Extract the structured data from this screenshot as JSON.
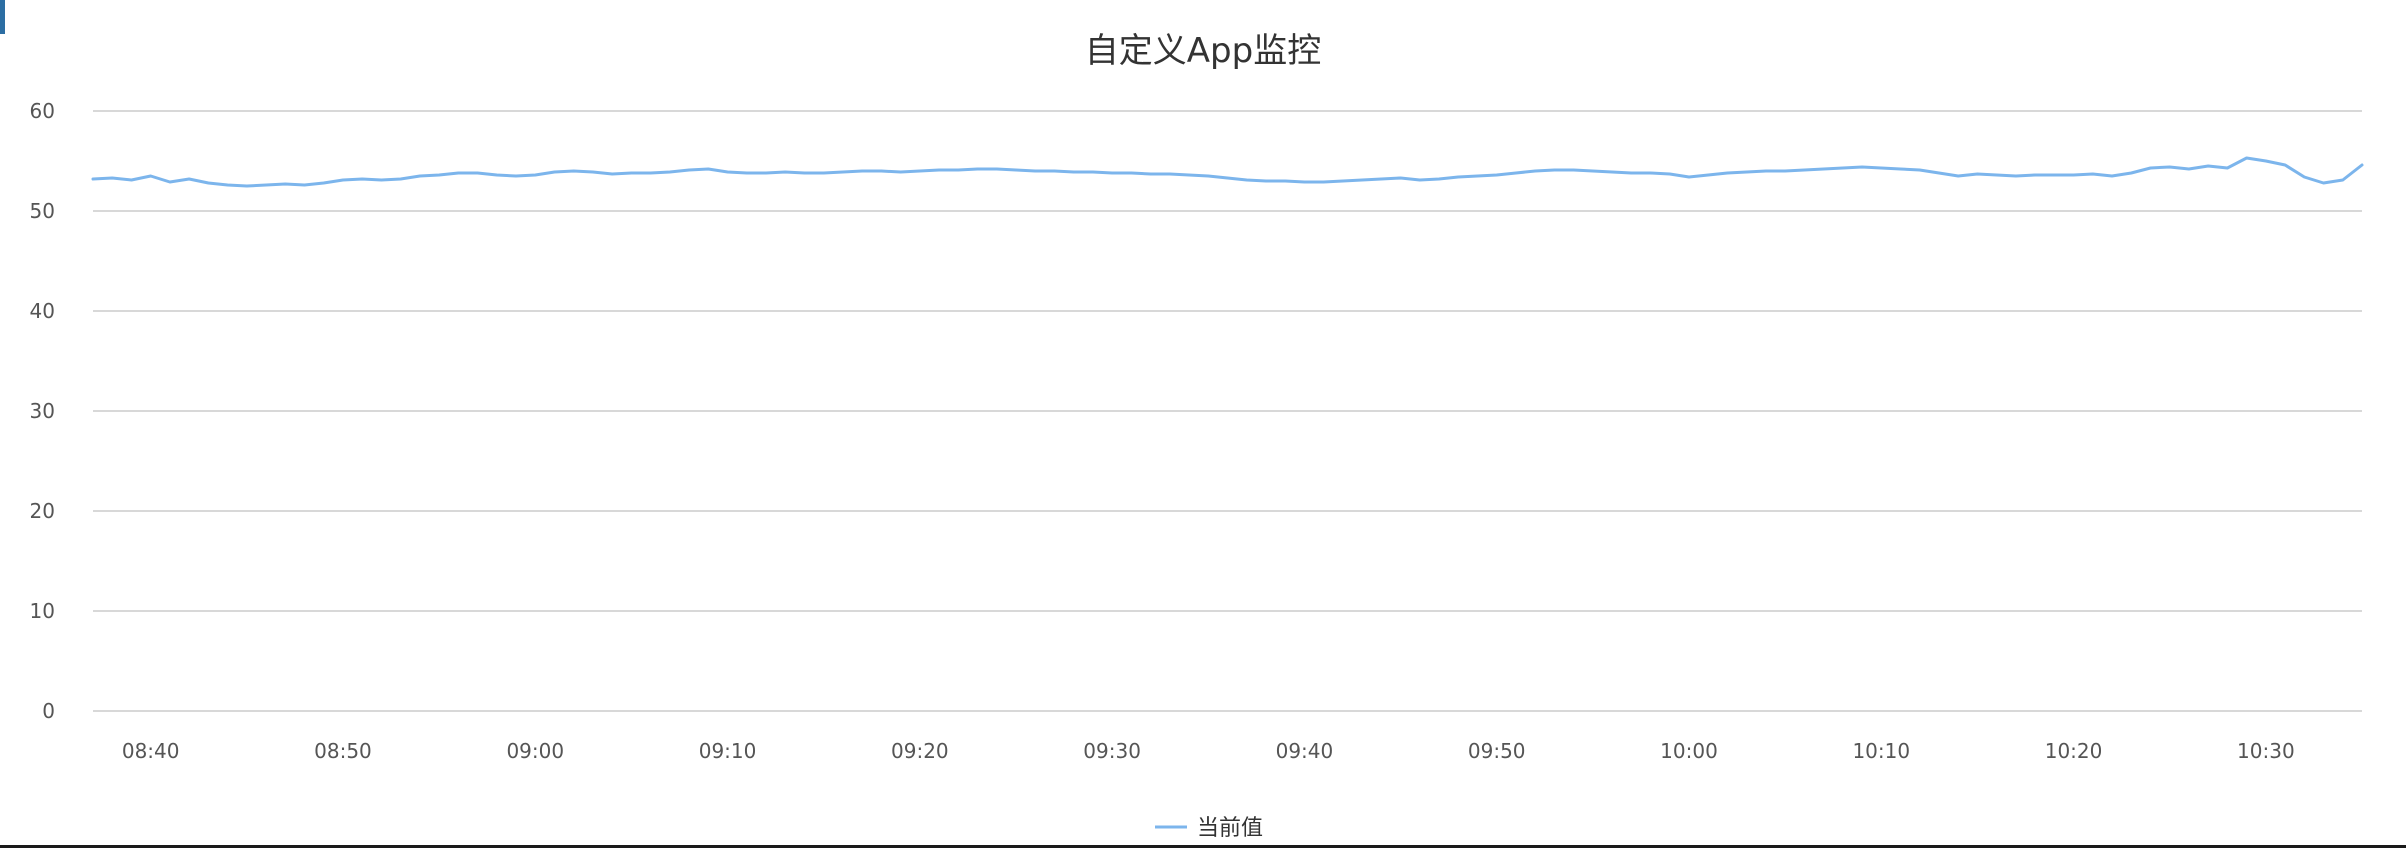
{
  "colors": {
    "series": "#7cb5ec",
    "grid": "#d8d8d8",
    "text": "#555555",
    "title": "#333333",
    "accent_bar": "#2c6ea3"
  },
  "chart_data": {
    "type": "line",
    "title": "自定义App监控",
    "xlabel": "",
    "ylabel": "",
    "ylim": [
      0,
      60
    ],
    "y_ticks": [
      0,
      10,
      20,
      30,
      40,
      50,
      60
    ],
    "xlim": [
      "08:37",
      "10:35"
    ],
    "x_ticks": [
      "08:40",
      "08:50",
      "09:00",
      "09:10",
      "09:20",
      "09:30",
      "09:40",
      "09:50",
      "10:00",
      "10:10",
      "10:20",
      "10:30"
    ],
    "grid": true,
    "legend_position": "bottom-center",
    "series": [
      {
        "name": "当前值",
        "color": "#7cb5ec",
        "x": [
          "08:37",
          "08:38",
          "08:39",
          "08:40",
          "08:41",
          "08:42",
          "08:43",
          "08:44",
          "08:45",
          "08:46",
          "08:47",
          "08:48",
          "08:49",
          "08:50",
          "08:51",
          "08:52",
          "08:53",
          "08:54",
          "08:55",
          "08:56",
          "08:57",
          "08:58",
          "08:59",
          "09:00",
          "09:01",
          "09:02",
          "09:03",
          "09:04",
          "09:05",
          "09:06",
          "09:07",
          "09:08",
          "09:09",
          "09:10",
          "09:11",
          "09:12",
          "09:13",
          "09:14",
          "09:15",
          "09:16",
          "09:17",
          "09:18",
          "09:19",
          "09:20",
          "09:21",
          "09:22",
          "09:23",
          "09:24",
          "09:25",
          "09:26",
          "09:27",
          "09:28",
          "09:29",
          "09:30",
          "09:31",
          "09:32",
          "09:33",
          "09:34",
          "09:35",
          "09:36",
          "09:37",
          "09:38",
          "09:39",
          "09:40",
          "09:41",
          "09:42",
          "09:43",
          "09:44",
          "09:45",
          "09:46",
          "09:47",
          "09:48",
          "09:49",
          "09:50",
          "09:51",
          "09:52",
          "09:53",
          "09:54",
          "09:55",
          "09:56",
          "09:57",
          "09:58",
          "09:59",
          "10:00",
          "10:01",
          "10:02",
          "10:03",
          "10:04",
          "10:05",
          "10:06",
          "10:07",
          "10:08",
          "10:09",
          "10:10",
          "10:11",
          "10:12",
          "10:13",
          "10:14",
          "10:15",
          "10:16",
          "10:17",
          "10:18",
          "10:19",
          "10:20",
          "10:21",
          "10:22",
          "10:23",
          "10:24",
          "10:25",
          "10:26",
          "10:27",
          "10:28",
          "10:29",
          "10:30",
          "10:31",
          "10:32",
          "10:33",
          "10:34",
          "10:35"
        ],
        "values": [
          53.2,
          53.3,
          53.1,
          53.5,
          52.9,
          53.2,
          52.8,
          52.6,
          52.5,
          52.6,
          52.7,
          52.6,
          52.8,
          53.1,
          53.2,
          53.1,
          53.2,
          53.5,
          53.6,
          53.8,
          53.8,
          53.6,
          53.5,
          53.6,
          53.9,
          54.0,
          53.9,
          53.7,
          53.8,
          53.8,
          53.9,
          54.1,
          54.2,
          53.9,
          53.8,
          53.8,
          53.9,
          53.8,
          53.8,
          53.9,
          54.0,
          54.0,
          53.9,
          54.0,
          54.1,
          54.1,
          54.2,
          54.2,
          54.1,
          54.0,
          54.0,
          53.9,
          53.9,
          53.8,
          53.8,
          53.7,
          53.7,
          53.6,
          53.5,
          53.3,
          53.1,
          53.0,
          53.0,
          52.9,
          52.9,
          53.0,
          53.1,
          53.2,
          53.3,
          53.1,
          53.2,
          53.4,
          53.5,
          53.6,
          53.8,
          54.0,
          54.1,
          54.1,
          54.0,
          53.9,
          53.8,
          53.8,
          53.7,
          53.4,
          53.6,
          53.8,
          53.9,
          54.0,
          54.0,
          54.1,
          54.2,
          54.3,
          54.4,
          54.3,
          54.2,
          54.1,
          53.8,
          53.5,
          53.7,
          53.6,
          53.5,
          53.6,
          53.6,
          53.6,
          53.7,
          53.5,
          53.8,
          54.3,
          54.4,
          54.2,
          54.5,
          54.3,
          55.3,
          55.0,
          54.6,
          53.4,
          52.8,
          53.1,
          54.6
        ]
      }
    ]
  }
}
